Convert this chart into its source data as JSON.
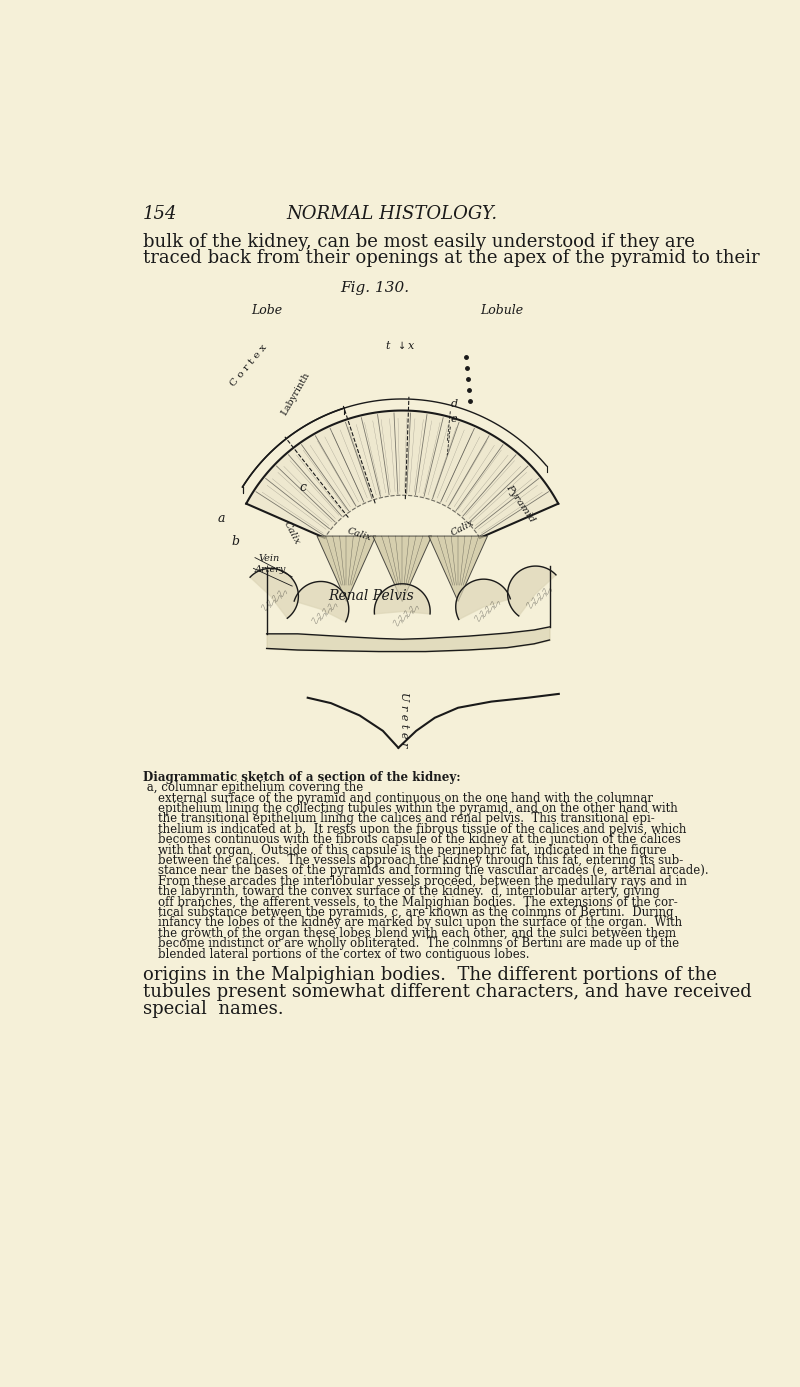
{
  "bg_color": "#f5f0d8",
  "page_num": "154",
  "header_title": "NORMAL HISTOLOGY.",
  "intro_line1": "bulk of the kidney, can be most easily understood if they are",
  "intro_line2": "traced back from their openings at the apex of the pyramid to their",
  "fig_label": "Fig. 130.",
  "caption_bold_start": "Diagrammatic sketch of a section of the kidney:",
  "caption_lines": [
    " a, columnar epithelium covering the",
    "    external surface of the pyramid and continuous on the one hand with the columnar",
    "    epithelium lining the collecting tubules within the pyramid, and on the other hand with",
    "    the transitional epithelium lining the calices and renal pelvis.  This transitional epi-",
    "    thelium is indicated at b.  It rests upon the fibrous tissue of the calices and pelvis, which",
    "    becomes continuous with the fibrous capsule of the kidney at the junction of the calices",
    "    with that organ.  Outside of this capsule is the perinephric fat, indicated in the figure",
    "    between the calices.  The vessels approach the kidney through this fat, entering its sub-",
    "    stance near the bases of the pyramids and forming the vascular arcades (e, arterial arcade).",
    "    From these arcades the interlobular vessels proceed, between the medullary rays and in",
    "    the labyrinth, toward the convex surface of the kidney.  d, interlobular artery, giving",
    "    off branches, the afferent vessels, to the Malpighian bodies.  The extensions of the cor-",
    "    tical substance between tbe pyramids, c, are known as the colnmns of Bertini.  During",
    "    infancy the lobes of the kidney are marked by sulci upon the surface of the organ.  With",
    "    the growth of the organ these lobes blend with each other, and the sulci between them",
    "    become indistinct or are wholly obliterated.  The colnmns of Bertini are made up of the",
    "    blended lateral portions of the cortex of two contiguous lobes."
  ],
  "final_line1": "origins in the Malpighian bodies.  The different portions of the",
  "final_line2": "tubules present somewhat different characters, and have received",
  "final_line3": "special  names.",
  "text_color": "#1a1a1a",
  "line_color": "#1a1a1a"
}
